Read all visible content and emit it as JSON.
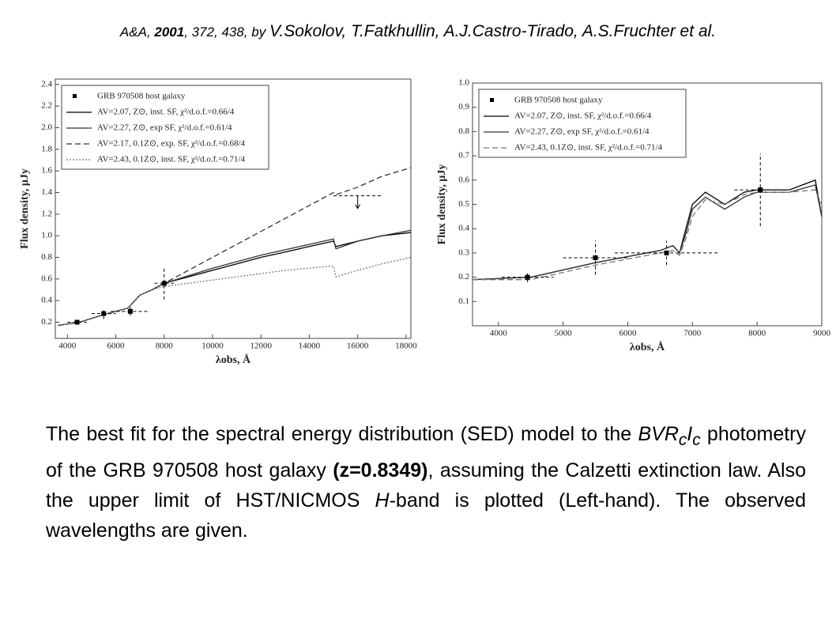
{
  "header": [
    "A&A, ",
    "2001",
    ", 372, 438, by ",
    "V.Sokolov, T.Fatkhullin, A.J.Castro-Tirado, A.S.Fruchter et al."
  ],
  "chart_data": [
    {
      "type": "line",
      "xlabel": "λobs, Å",
      "ylabel": "Flux density, μJy",
      "xlim": [
        3500,
        18200
      ],
      "xticks": [
        4000,
        6000,
        8000,
        10000,
        12000,
        14000,
        16000,
        18000
      ],
      "ylim": [
        0.05,
        2.45
      ],
      "yticks": [
        0.2,
        0.4,
        0.6,
        0.8,
        {
          "value": 1,
          "label": "1.0"
        },
        1.2,
        1.4,
        1.6,
        1.8,
        {
          "value": 2,
          "label": "2.0"
        },
        2.2,
        2.4
      ],
      "legend": "upper left",
      "x": [
        3600,
        4500,
        5500,
        6500,
        7000,
        7500,
        8000,
        9000,
        10000,
        11000,
        12000,
        13000,
        14000,
        15000,
        15100,
        16000,
        17000,
        18200
      ],
      "series": [
        {
          "name": "AV=2.07, Z⊙, inst. SF, χ²/d.o.f.=0.66/4",
          "color": "#000000",
          "style": "solid",
          "values": [
            0.17,
            0.2,
            0.27,
            0.33,
            0.45,
            0.5,
            0.56,
            0.62,
            0.68,
            0.74,
            0.8,
            0.85,
            0.9,
            0.95,
            0.9,
            0.95,
            1.0,
            1.03
          ]
        },
        {
          "name": "AV=2.27, Z⊙, exp SF, χ²/d.o.f.=0.61/4",
          "color": "#333333",
          "style": "solid",
          "values": [
            0.17,
            0.2,
            0.27,
            0.33,
            0.45,
            0.5,
            0.56,
            0.63,
            0.7,
            0.76,
            0.82,
            0.87,
            0.92,
            0.97,
            0.88,
            0.95,
            1.0,
            1.05
          ]
        },
        {
          "name": "AV=2.17, 0.1Z⊙, exp. SF, χ²/d.o.f.=0.68/4",
          "color": "#333333",
          "style": "dashed",
          "values": [
            0.17,
            0.2,
            0.27,
            0.33,
            0.45,
            0.5,
            0.56,
            0.68,
            0.8,
            0.92,
            1.04,
            1.16,
            1.28,
            1.4,
            1.38,
            1.45,
            1.55,
            1.63
          ]
        },
        {
          "name": "AV=2.43, 0.1Z⊙, inst. SF, χ²/d.o.f.=0.71/4",
          "color": "#777777",
          "style": "dotted",
          "values": [
            0.17,
            0.2,
            0.27,
            0.33,
            0.45,
            0.5,
            0.53,
            0.56,
            0.59,
            0.62,
            0.65,
            0.68,
            0.7,
            0.72,
            0.62,
            0.68,
            0.74,
            0.8
          ]
        }
      ],
      "points": {
        "name": "GRB 970508 host galaxy",
        "color": "#000000",
        "x": [
          4400,
          5500,
          6600,
          8000
        ],
        "values": [
          0.2,
          0.28,
          0.3,
          0.56
        ],
        "xerr": [
          400,
          500,
          800,
          400
        ],
        "yerr": [
          0.02,
          0.05,
          0.04,
          0.15
        ]
      },
      "upper_limits": {
        "x": [
          16000
        ],
        "values": [
          1.37
        ],
        "xerr": [
          1000
        ]
      }
    },
    {
      "type": "line",
      "xlabel": "λobs, Å",
      "ylabel": "Flux density, μJy",
      "xlim": [
        3600,
        9000
      ],
      "xticks": [
        4000,
        5000,
        6000,
        7000,
        8000,
        9000
      ],
      "ylim": [
        0,
        1.0
      ],
      "yticks": [
        0.1,
        0.2,
        0.3,
        0.4,
        0.5,
        0.6,
        0.7,
        0.8,
        0.9,
        {
          "value": 1,
          "label": "1.0"
        }
      ],
      "legend": "upper left",
      "x": [
        3600,
        4500,
        5500,
        6500,
        6700,
        6800,
        6900,
        7000,
        7200,
        7500,
        7800,
        8000,
        8500,
        8900,
        9000
      ],
      "series": [
        {
          "name": "AV=2.07, Z⊙, inst. SF, χ²/d.o.f.=0.66/4",
          "color": "#000000",
          "style": "solid",
          "values": [
            0.19,
            0.2,
            0.26,
            0.31,
            0.33,
            0.3,
            0.4,
            0.5,
            0.55,
            0.5,
            0.55,
            0.56,
            0.56,
            0.6,
            0.45
          ]
        },
        {
          "name": "AV=2.27, Z⊙, exp SF, χ²/d.o.f.=0.61/4",
          "color": "#333333",
          "style": "solid",
          "values": [
            0.19,
            0.2,
            0.26,
            0.31,
            0.33,
            0.3,
            0.38,
            0.48,
            0.53,
            0.48,
            0.53,
            0.55,
            0.55,
            0.58,
            0.45
          ]
        },
        {
          "name": "AV=2.43, 0.1Z⊙, inst. SF, χ²/d.o.f.=0.71/4",
          "color": "#777777",
          "style": "dashed",
          "values": [
            0.19,
            0.19,
            0.25,
            0.3,
            0.31,
            0.29,
            0.36,
            0.45,
            0.52,
            0.5,
            0.54,
            0.55,
            0.55,
            0.56,
            0.5
          ]
        }
      ],
      "points": {
        "name": "GRB 970508 host galaxy",
        "color": "#000000",
        "x": [
          4450,
          5500,
          6600,
          8050
        ],
        "values": [
          0.2,
          0.28,
          0.3,
          0.56
        ],
        "xerr": [
          400,
          500,
          800,
          400
        ],
        "yerr": [
          0.02,
          0.07,
          0.05,
          0.15
        ]
      }
    }
  ],
  "caption": [
    "The best fit for the spectral energy distribution (SED) model to the ",
    "BVR",
    "c",
    "I",
    "c",
    " photometry of the GRB 970508 host galaxy ",
    "(z=0.8349)",
    ", assuming the Calzetti extinction law. Also the upper limit of HST/NICMOS ",
    "H",
    "-band is plotted (Left-hand). The observed wavelengths are given."
  ]
}
